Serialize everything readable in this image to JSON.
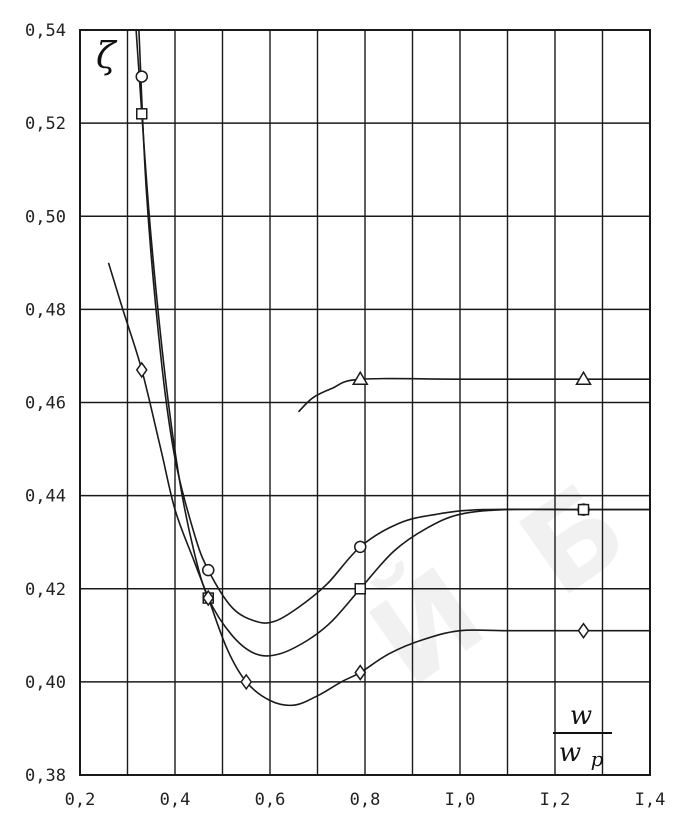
{
  "chart_data": {
    "type": "line",
    "ylabel": "ζ",
    "xlabel": {
      "numerator": "w",
      "denominator": "w",
      "denominator_subscript": "p"
    },
    "xlim": [
      0.2,
      1.4
    ],
    "ylim": [
      0.38,
      0.54
    ],
    "x_ticks": [
      "0,2",
      "0,4",
      "0,6",
      "0,8",
      "I,0",
      "I,2",
      "I,4"
    ],
    "x_tick_values": [
      0.2,
      0.4,
      0.6,
      0.8,
      1.0,
      1.2,
      1.4
    ],
    "y_ticks": [
      "0,38",
      "0,40",
      "0,42",
      "0,44",
      "0,46",
      "0,48",
      "0,50",
      "0,52",
      "0,54"
    ],
    "y_tick_values": [
      0.38,
      0.4,
      0.42,
      0.44,
      0.46,
      0.48,
      0.5,
      0.52,
      0.54
    ],
    "x_minor_step": 0.1,
    "grid": true,
    "series": [
      {
        "marker": "circle",
        "points": [
          [
            0.33,
            0.53
          ],
          [
            0.47,
            0.424
          ],
          [
            0.79,
            0.429
          ],
          [
            1.26,
            0.437
          ]
        ],
        "curve": [
          [
            0.324,
            0.54
          ],
          [
            0.34,
            0.505
          ],
          [
            0.37,
            0.47
          ],
          [
            0.4,
            0.448
          ],
          [
            0.44,
            0.432
          ],
          [
            0.47,
            0.424
          ],
          [
            0.52,
            0.416
          ],
          [
            0.57,
            0.413
          ],
          [
            0.61,
            0.413
          ],
          [
            0.66,
            0.416
          ],
          [
            0.72,
            0.421
          ],
          [
            0.79,
            0.429
          ],
          [
            0.87,
            0.434
          ],
          [
            0.95,
            0.436
          ],
          [
            1.05,
            0.437
          ],
          [
            1.26,
            0.437
          ],
          [
            1.4,
            0.437
          ]
        ]
      },
      {
        "marker": "square",
        "points": [
          [
            0.33,
            0.522
          ],
          [
            0.47,
            0.418
          ],
          [
            0.79,
            0.42
          ],
          [
            1.26,
            0.437
          ]
        ],
        "curve": [
          [
            0.318,
            0.54
          ],
          [
            0.33,
            0.522
          ],
          [
            0.35,
            0.495
          ],
          [
            0.38,
            0.465
          ],
          [
            0.41,
            0.443
          ],
          [
            0.44,
            0.428
          ],
          [
            0.47,
            0.418
          ],
          [
            0.52,
            0.41
          ],
          [
            0.57,
            0.406
          ],
          [
            0.62,
            0.406
          ],
          [
            0.68,
            0.409
          ],
          [
            0.73,
            0.413
          ],
          [
            0.79,
            0.42
          ],
          [
            0.86,
            0.428
          ],
          [
            0.93,
            0.433
          ],
          [
            1.0,
            0.436
          ],
          [
            1.1,
            0.437
          ],
          [
            1.26,
            0.437
          ],
          [
            1.4,
            0.437
          ]
        ]
      },
      {
        "marker": "diamond",
        "points": [
          [
            0.33,
            0.467
          ],
          [
            0.47,
            0.418
          ],
          [
            0.55,
            0.4
          ],
          [
            0.79,
            0.402
          ],
          [
            1.26,
            0.411
          ]
        ],
        "curve": [
          [
            0.26,
            0.49
          ],
          [
            0.29,
            0.48
          ],
          [
            0.33,
            0.467
          ],
          [
            0.37,
            0.45
          ],
          [
            0.4,
            0.437
          ],
          [
            0.44,
            0.426
          ],
          [
            0.47,
            0.418
          ],
          [
            0.51,
            0.407
          ],
          [
            0.55,
            0.4
          ],
          [
            0.6,
            0.396
          ],
          [
            0.65,
            0.395
          ],
          [
            0.7,
            0.397
          ],
          [
            0.75,
            0.4
          ],
          [
            0.79,
            0.402
          ],
          [
            0.85,
            0.406
          ],
          [
            0.92,
            0.409
          ],
          [
            1.0,
            0.411
          ],
          [
            1.1,
            0.411
          ],
          [
            1.26,
            0.411
          ],
          [
            1.4,
            0.411
          ]
        ]
      },
      {
        "marker": "triangle",
        "points": [
          [
            0.79,
            0.465
          ],
          [
            1.26,
            0.465
          ]
        ],
        "curve": [
          [
            0.66,
            0.458
          ],
          [
            0.69,
            0.461
          ],
          [
            0.73,
            0.463
          ],
          [
            0.79,
            0.465
          ],
          [
            1.0,
            0.465
          ],
          [
            1.26,
            0.465
          ],
          [
            1.4,
            0.465
          ]
        ]
      }
    ],
    "colors": {
      "grid": "#1a1a1a",
      "line": "#1a1a1a",
      "background": "#ffffff"
    }
  }
}
